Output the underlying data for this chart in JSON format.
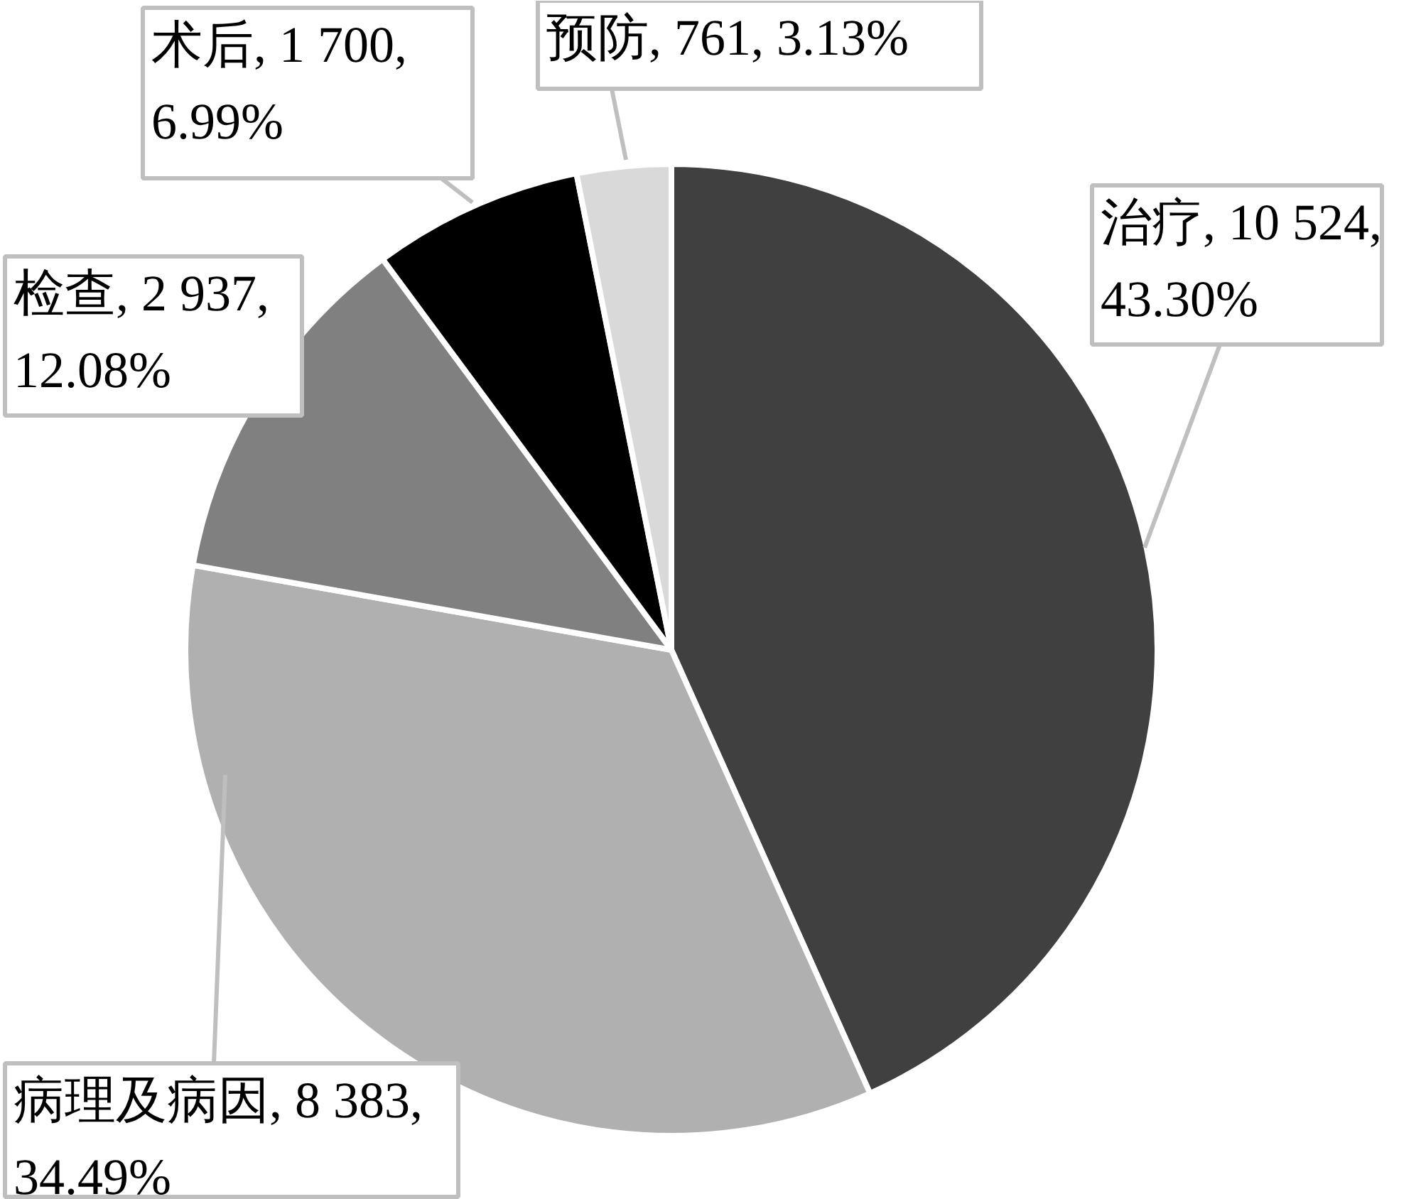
{
  "chart_data": {
    "type": "pie",
    "categories": [
      "治疗",
      "病理及病因",
      "检查",
      "术后",
      "预防"
    ],
    "values": [
      10524,
      8383,
      2937,
      1700,
      761
    ],
    "colors": [
      "#404040",
      "#b0b0b0",
      "#808080",
      "#000000",
      "#d9d9d9"
    ],
    "value_labels": [
      "10 524, 43.30%",
      "8 383, 34.49%",
      "2 937, 12.08%",
      "1 700, 6.99%",
      "761, 3.13%"
    ]
  }
}
